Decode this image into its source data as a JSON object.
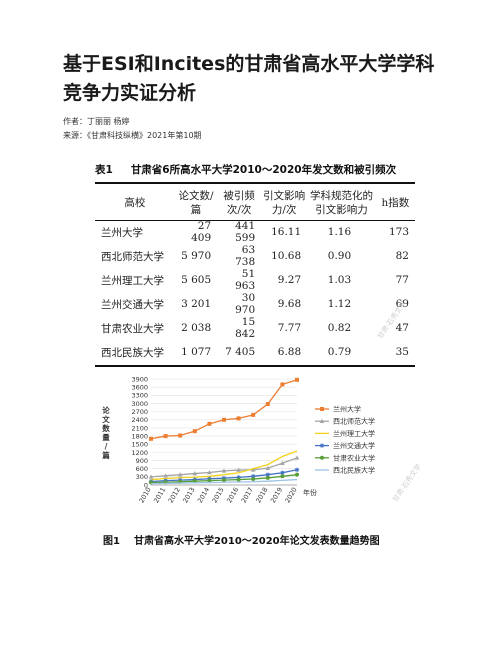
{
  "title": "基于ESI和Incites的甘肃省高水平大学学科竞争力实证分析",
  "authors": "作者：丁丽丽 杨婷",
  "source": "来源：《甘肃科技纵横》2021年第10期",
  "table": {
    "caption_num": "表1",
    "caption_text": "甘肃省6所高水平大学2010～2020年发文数和被引频次",
    "headers": [
      "高校",
      "论文数/篇",
      "被引频次/次",
      "引文影响力/次",
      "学科规范化的引文影响力",
      "h指数"
    ],
    "rows": [
      [
        "兰州大学",
        "27 409",
        "441 599",
        "16.11",
        "1.16",
        "173"
      ],
      [
        "西北师范大学",
        "5 970",
        "63 738",
        "10.68",
        "0.90",
        "82"
      ],
      [
        "兰州理工大学",
        "5 605",
        "51 963",
        "9.27",
        "1.03",
        "77"
      ],
      [
        "兰州交通大学",
        "3 201",
        "30 970",
        "9.68",
        "1.12",
        "69"
      ],
      [
        "甘肃农业大学",
        "2 038",
        "15 842",
        "7.77",
        "0.82",
        "47"
      ],
      [
        "西北民族大学",
        "1 077",
        "7 405",
        "6.88",
        "0.79",
        "35"
      ]
    ]
  },
  "figure": {
    "caption_num": "图1",
    "caption_text": "甘肃省高水平大学2010～2020年论文发表数量趋势图"
  },
  "watermark": "甘肃·石秀文学",
  "chart_data": {
    "type": "line",
    "ylabel": "论文数量/篇",
    "xlabel": "年份",
    "x": [
      "2010",
      "2011",
      "2012",
      "2013",
      "2014",
      "2015",
      "2016",
      "2017",
      "2018",
      "2019",
      "2020"
    ],
    "yticks": [
      0,
      300,
      600,
      900,
      1200,
      1500,
      1800,
      2100,
      2400,
      2700,
      3000,
      3300,
      3600,
      3900
    ],
    "ylim": [
      0,
      3900
    ],
    "legend_position": "right",
    "series": [
      {
        "name": "兰州大学",
        "color": "#ed7d31",
        "marker": "square",
        "values": [
          1700,
          1800,
          1820,
          1980,
          2250,
          2400,
          2450,
          2580,
          2980,
          3700,
          3870
        ]
      },
      {
        "name": "西北师范大学",
        "color": "#a5a5a5",
        "marker": "triangle",
        "values": [
          300,
          340,
          380,
          420,
          460,
          520,
          550,
          560,
          620,
          800,
          1000
        ]
      },
      {
        "name": "兰州理工大学",
        "color": "#f2d21b",
        "marker": "none",
        "values": [
          200,
          240,
          270,
          290,
          320,
          380,
          450,
          600,
          750,
          1050,
          1250
        ]
      },
      {
        "name": "兰州交通大学",
        "color": "#4472c4",
        "marker": "star",
        "values": [
          130,
          160,
          180,
          200,
          230,
          250,
          280,
          320,
          380,
          450,
          560
        ]
      },
      {
        "name": "甘肃农业大学",
        "color": "#5a9e3a",
        "marker": "circle",
        "values": [
          90,
          100,
          120,
          140,
          160,
          180,
          200,
          220,
          260,
          320,
          380
        ]
      },
      {
        "name": "西北民族大学",
        "color": "#9dc3e6",
        "marker": "none",
        "values": [
          50,
          60,
          70,
          80,
          90,
          100,
          110,
          120,
          140,
          170,
          200
        ]
      }
    ]
  }
}
